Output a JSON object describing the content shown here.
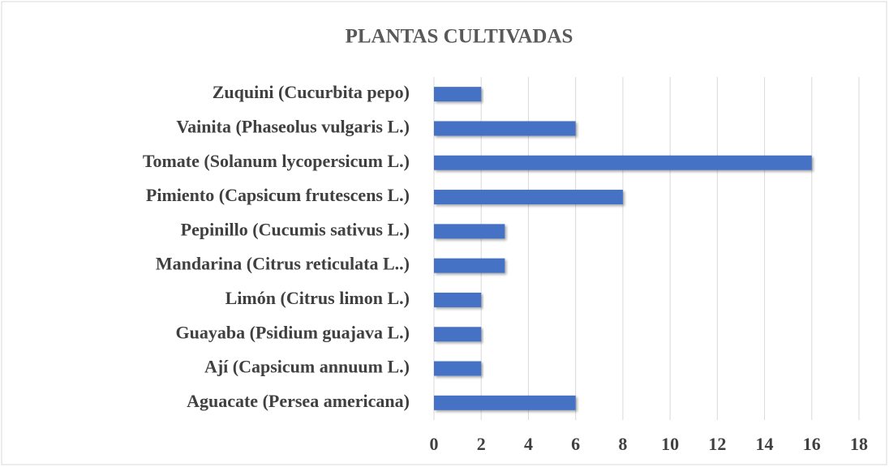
{
  "chart_data": {
    "type": "bar",
    "orientation": "horizontal",
    "title": "PLANTAS CULTIVADAS",
    "categories": [
      "Aguacate (Persea americana)",
      "Ají (Capsicum annuum L.)",
      "Guayaba (Psidium guajava L.)",
      "Limón (Citrus limon L.)",
      "Mandarina (Citrus reticulata L..)",
      "Pepinillo (Cucumis sativus L.)",
      "Pimiento (Capsicum frutescens L.)",
      "Tomate (Solanum lycopersicum L.)",
      "Vainita (Phaseolus vulgaris L.)",
      "Zuquini (Cucurbita pepo)"
    ],
    "values": [
      6,
      2,
      2,
      2,
      3,
      3,
      8,
      16,
      6,
      2
    ],
    "color": "#4472c4",
    "xlim": [
      0,
      18
    ],
    "xticks": [
      0,
      2,
      4,
      6,
      8,
      10,
      12,
      14,
      16,
      18
    ],
    "grid": true
  }
}
